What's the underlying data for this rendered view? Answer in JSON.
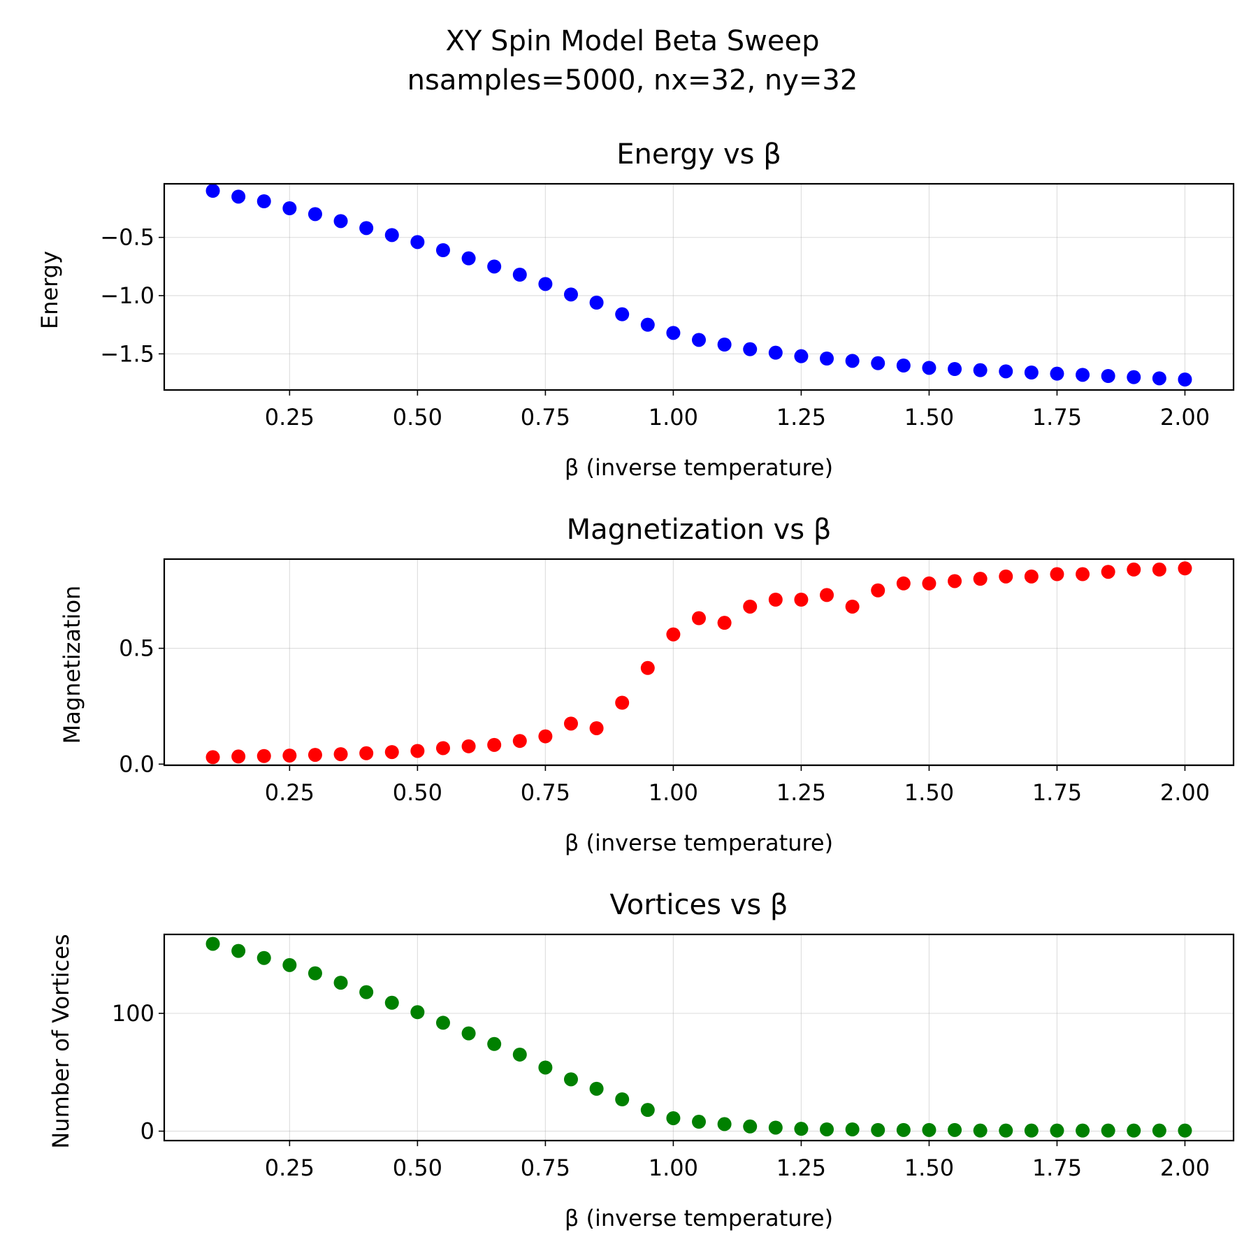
{
  "figure": {
    "suptitle_line1": "XY Spin Model Beta Sweep",
    "suptitle_line2": "nsamples=5000, nx=32, ny=32"
  },
  "chart_data": [
    {
      "type": "scatter",
      "title": "Energy vs β",
      "xlabel": "β (inverse temperature)",
      "ylabel": "Energy",
      "color": "#0000ff",
      "grid": true,
      "xlim": [
        0.005,
        2.095
      ],
      "ylim": [
        -1.81,
        -0.04
      ],
      "xticks": [
        0.25,
        0.5,
        0.75,
        1.0,
        1.25,
        1.5,
        1.75,
        2.0
      ],
      "xtick_labels": [
        "0.25",
        "0.50",
        "0.75",
        "1.00",
        "1.25",
        "1.50",
        "1.75",
        "2.00"
      ],
      "yticks": [
        -0.5,
        -1.0,
        -1.5
      ],
      "ytick_labels": [
        "−0.5",
        "−1.0",
        "−1.5"
      ],
      "x": [
        0.1,
        0.15,
        0.2,
        0.25,
        0.3,
        0.35,
        0.4,
        0.45,
        0.5,
        0.55,
        0.6,
        0.65,
        0.7,
        0.75,
        0.8,
        0.85,
        0.9,
        0.95,
        1.0,
        1.05,
        1.1,
        1.15,
        1.2,
        1.25,
        1.3,
        1.35,
        1.4,
        1.45,
        1.5,
        1.55,
        1.6,
        1.65,
        1.7,
        1.75,
        1.8,
        1.85,
        1.9,
        1.95,
        2.0
      ],
      "y": [
        -0.1,
        -0.15,
        -0.19,
        -0.25,
        -0.3,
        -0.36,
        -0.42,
        -0.48,
        -0.54,
        -0.61,
        -0.68,
        -0.75,
        -0.82,
        -0.9,
        -0.99,
        -1.06,
        -1.16,
        -1.25,
        -1.32,
        -1.38,
        -1.42,
        -1.46,
        -1.49,
        -1.52,
        -1.54,
        -1.56,
        -1.58,
        -1.6,
        -1.62,
        -1.63,
        -1.64,
        -1.65,
        -1.66,
        -1.67,
        -1.68,
        -1.69,
        -1.7,
        -1.71,
        -1.72
      ]
    },
    {
      "type": "scatter",
      "title": "Magnetization vs β",
      "xlabel": "β (inverse temperature)",
      "ylabel": "Magnetization",
      "color": "#ff0000",
      "grid": true,
      "xlim": [
        0.005,
        2.095
      ],
      "ylim": [
        -0.005,
        0.885
      ],
      "xticks": [
        0.25,
        0.5,
        0.75,
        1.0,
        1.25,
        1.5,
        1.75,
        2.0
      ],
      "xtick_labels": [
        "0.25",
        "0.50",
        "0.75",
        "1.00",
        "1.25",
        "1.50",
        "1.75",
        "2.00"
      ],
      "yticks": [
        0.0,
        0.5
      ],
      "ytick_labels": [
        "0.0",
        "0.5"
      ],
      "x": [
        0.1,
        0.15,
        0.2,
        0.25,
        0.3,
        0.35,
        0.4,
        0.45,
        0.5,
        0.55,
        0.6,
        0.65,
        0.7,
        0.75,
        0.8,
        0.85,
        0.9,
        0.95,
        1.0,
        1.05,
        1.1,
        1.15,
        1.2,
        1.25,
        1.3,
        1.35,
        1.4,
        1.45,
        1.5,
        1.55,
        1.6,
        1.65,
        1.7,
        1.75,
        1.8,
        1.85,
        1.9,
        1.95,
        2.0
      ],
      "y": [
        0.03,
        0.033,
        0.035,
        0.037,
        0.04,
        0.043,
        0.047,
        0.052,
        0.057,
        0.069,
        0.077,
        0.083,
        0.1,
        0.12,
        0.175,
        0.155,
        0.265,
        0.415,
        0.56,
        0.63,
        0.61,
        0.68,
        0.71,
        0.71,
        0.73,
        0.68,
        0.75,
        0.78,
        0.78,
        0.79,
        0.8,
        0.81,
        0.81,
        0.82,
        0.82,
        0.83,
        0.84,
        0.84,
        0.845
      ]
    },
    {
      "type": "scatter",
      "title": "Vortices vs β",
      "xlabel": "β (inverse temperature)",
      "ylabel": "Number of Vortices",
      "color": "#008000",
      "grid": true,
      "xlim": [
        0.005,
        2.095
      ],
      "ylim": [
        -8,
        167
      ],
      "xticks": [
        0.25,
        0.5,
        0.75,
        1.0,
        1.25,
        1.5,
        1.75,
        2.0
      ],
      "xtick_labels": [
        "0.25",
        "0.50",
        "0.75",
        "1.00",
        "1.25",
        "1.50",
        "1.75",
        "2.00"
      ],
      "yticks": [
        0,
        100
      ],
      "ytick_labels": [
        "0",
        "100"
      ],
      "x": [
        0.1,
        0.15,
        0.2,
        0.25,
        0.3,
        0.35,
        0.4,
        0.45,
        0.5,
        0.55,
        0.6,
        0.65,
        0.7,
        0.75,
        0.8,
        0.85,
        0.9,
        0.95,
        1.0,
        1.05,
        1.1,
        1.15,
        1.2,
        1.25,
        1.3,
        1.35,
        1.4,
        1.45,
        1.5,
        1.55,
        1.6,
        1.65,
        1.7,
        1.75,
        1.8,
        1.85,
        1.9,
        1.95,
        2.0
      ],
      "y": [
        159,
        153,
        147,
        141,
        134,
        126,
        118,
        109,
        101,
        92,
        83,
        74,
        65,
        54,
        44,
        36,
        27,
        18,
        11,
        8,
        6,
        4,
        3,
        2,
        1.5,
        1.5,
        1,
        1,
        1,
        1,
        0.5,
        0.5,
        0.5,
        0.5,
        0.5,
        0.5,
        0.5,
        0.5,
        0.5
      ]
    }
  ]
}
